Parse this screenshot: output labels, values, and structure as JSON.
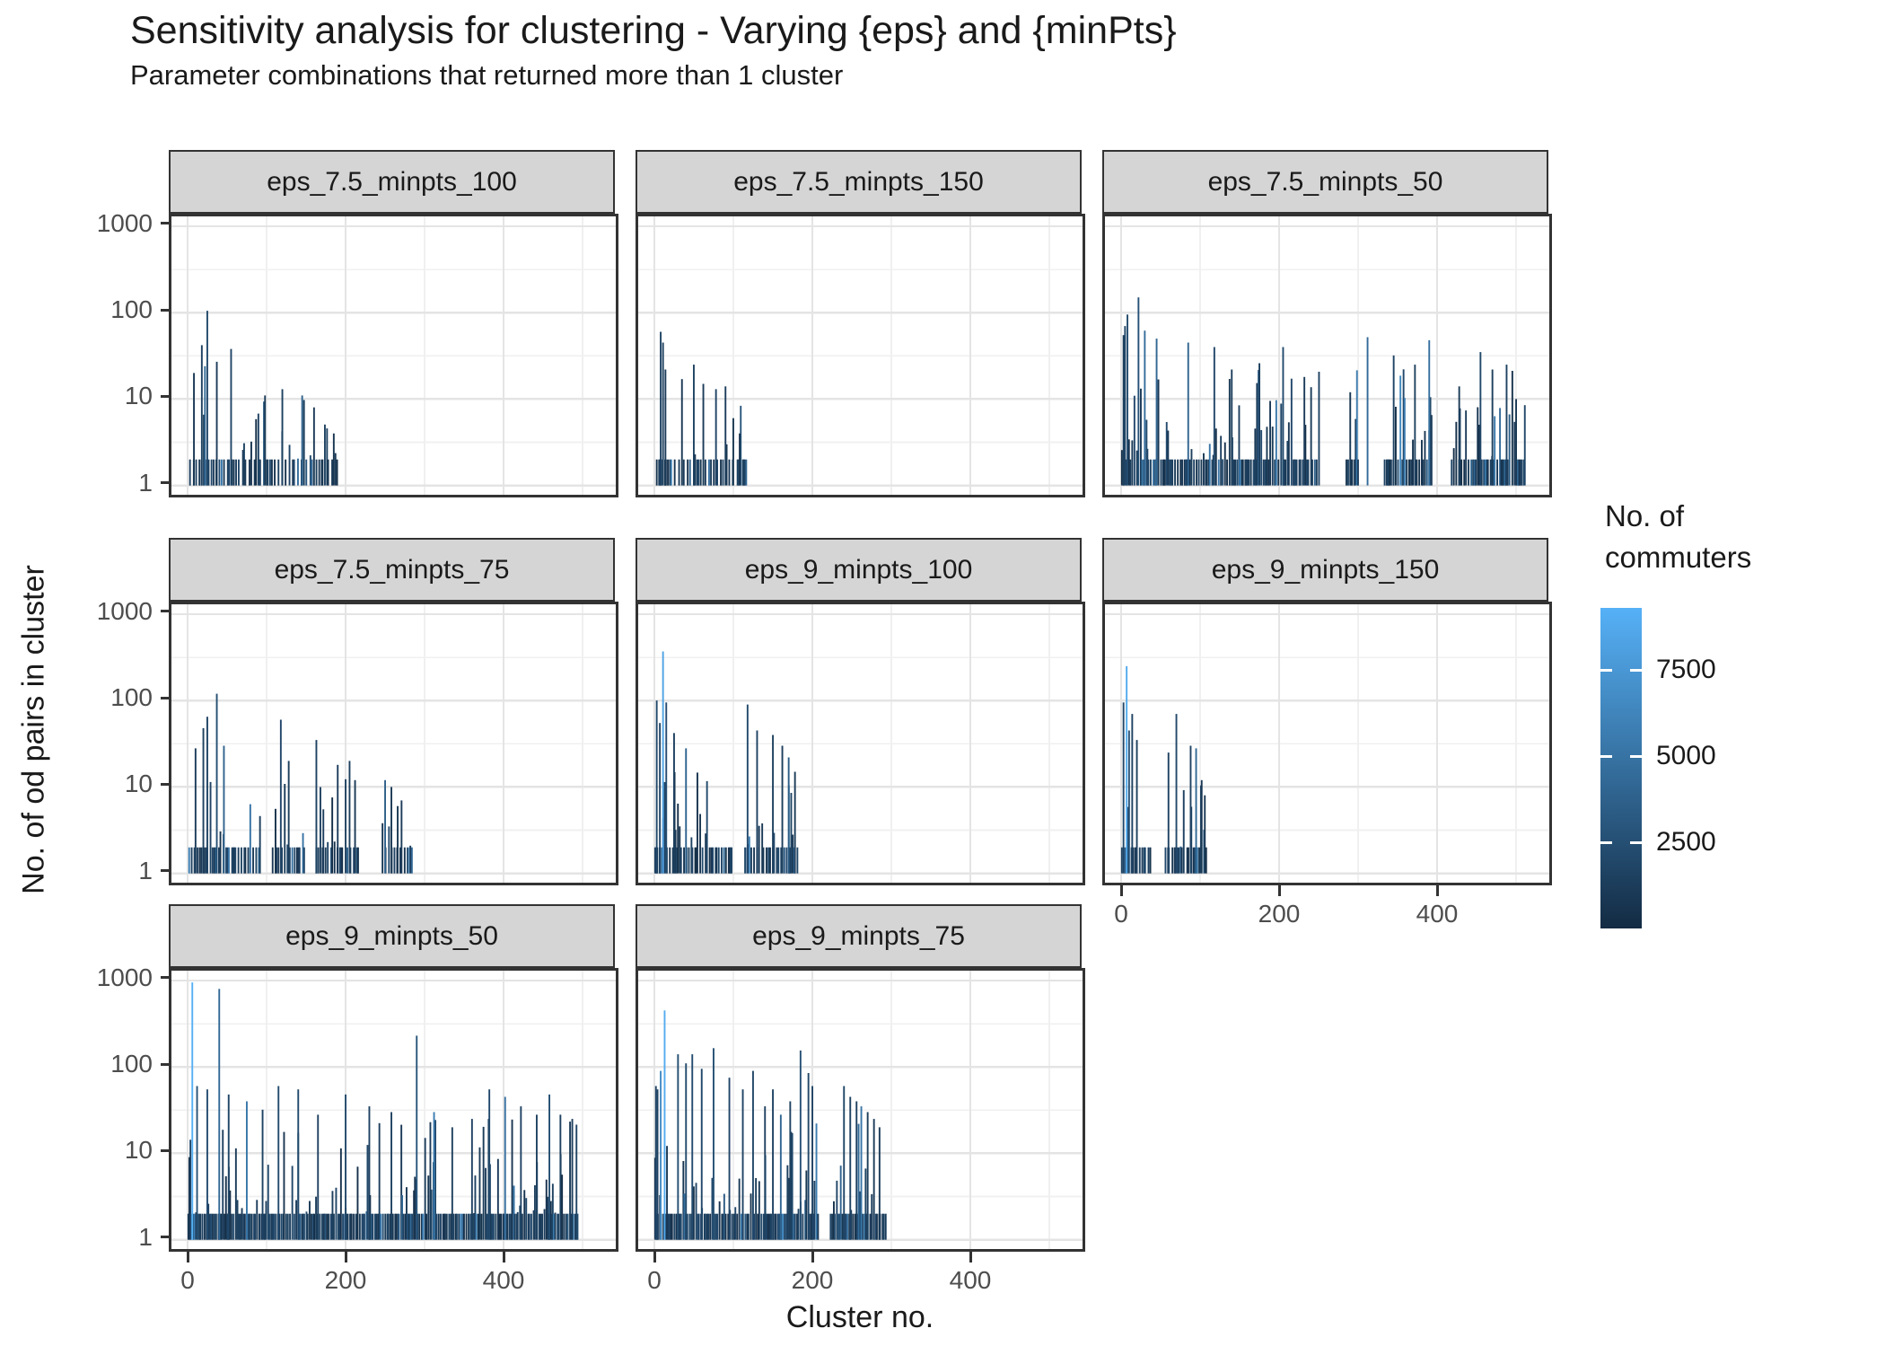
{
  "title": "Sensitivity analysis for clustering - Varying {eps} and {minPts}",
  "subtitle": "Parameter combinations that returned more than 1 cluster",
  "axes": {
    "x_title": "Cluster no.",
    "y_title": "No. of od pairs in cluster",
    "x_ticks": [
      "0",
      "200",
      "400"
    ],
    "y_ticks": [
      "1000",
      "100",
      "10",
      "1"
    ]
  },
  "legend": {
    "title_lines": [
      "No. of",
      "commuters"
    ],
    "tick_labels": [
      "7500",
      "5000",
      "2500"
    ],
    "gradient_high": "#56B1F7",
    "gradient_low": "#132B43"
  },
  "style": {
    "grid_major": "#e4e4e4",
    "grid_minor": "#f0f0f0",
    "panel_border": "#333333",
    "strip_bg": "#d5d5d5"
  },
  "chart_data": {
    "type": "bar",
    "y_scale": "log10",
    "x_tick_values": [
      0,
      200,
      400
    ],
    "y_tick_values": [
      1,
      10,
      100,
      1000
    ],
    "x_minor_values": [
      100,
      300,
      500
    ],
    "y_minor_values": [
      3.162,
      31.62,
      316.2
    ],
    "y_view": [
      0.78,
      1300
    ],
    "x_view_max": 547,
    "commuters_color_domain": [
      0,
      9300
    ],
    "legend_tick_values": [
      7500,
      5000,
      2500
    ],
    "facets": [
      {
        "label": "eps_7.5_minpts_100",
        "x_range": [
          0,
          190
        ],
        "y_peak": 105,
        "n_bars_approx": 60,
        "notable_bars": [
          [
            25,
            105,
            2100
          ],
          [
            18,
            42,
            1500
          ],
          [
            55,
            38,
            1800
          ],
          [
            37,
            27,
            1200
          ],
          [
            8,
            20,
            900
          ],
          [
            22,
            24,
            4200
          ],
          [
            120,
            13,
            1500
          ],
          [
            98,
            11,
            1100
          ],
          [
            145,
            11,
            3800
          ],
          [
            160,
            8,
            900
          ],
          [
            185,
            4,
            700
          ]
        ],
        "gen": {
          "seed": 11,
          "x_start": 3,
          "x_max": 190,
          "step": 4.5,
          "log_max": 1.15,
          "gaps": []
        }
      },
      {
        "label": "eps_7.5_minpts_150",
        "x_range": [
          0,
          120
        ],
        "y_peak": 60,
        "n_bars_approx": 30,
        "notable_bars": [
          [
            8,
            60,
            1700
          ],
          [
            11,
            45,
            1400
          ],
          [
            14,
            22,
            1100
          ],
          [
            50,
            25,
            1500
          ],
          [
            35,
            17,
            1000
          ],
          [
            62,
            15,
            1100
          ],
          [
            78,
            13,
            1700
          ],
          [
            90,
            14,
            1300
          ],
          [
            100,
            6,
            800
          ],
          [
            108,
            4,
            700
          ]
        ],
        "gen": {
          "seed": 22,
          "x_start": 3,
          "x_max": 118,
          "step": 5.5,
          "log_max": 0.95,
          "gaps": []
        }
      },
      {
        "label": "eps_7.5_minpts_50",
        "x_range": [
          0,
          512
        ],
        "y_peak": 150,
        "n_bars_approx": 170,
        "notable_bars": [
          [
            22,
            150,
            2700
          ],
          [
            8,
            95,
            2200
          ],
          [
            5,
            70,
            1800
          ],
          [
            3,
            55,
            1500
          ],
          [
            30,
            62,
            4600
          ],
          [
            45,
            50,
            4100
          ],
          [
            85,
            45,
            3900
          ],
          [
            118,
            40,
            1900
          ],
          [
            140,
            22,
            1300
          ],
          [
            175,
            26,
            1400
          ],
          [
            205,
            40,
            2200
          ],
          [
            232,
            18,
            1200
          ],
          [
            290,
            12,
            1000
          ],
          [
            312,
            52,
            4400
          ],
          [
            345,
            32,
            1700
          ],
          [
            372,
            25,
            1500
          ],
          [
            390,
            48,
            4700
          ],
          [
            428,
            14,
            1100
          ],
          [
            455,
            35,
            2000
          ],
          [
            470,
            22,
            1400
          ],
          [
            488,
            25,
            1600
          ],
          [
            500,
            10,
            900
          ]
        ],
        "gen": {
          "seed": 33,
          "x_start": 1,
          "x_max": 512,
          "step": 2.6,
          "log_max": 1.35,
          "gaps": [
            [
              252,
              284
            ],
            [
              300,
              332
            ],
            [
              394,
              418
            ]
          ]
        }
      },
      {
        "label": "eps_7.5_minpts_75",
        "x_range": [
          0,
          284
        ],
        "y_peak": 120,
        "n_bars_approx": 75,
        "notable_bars": [
          [
            37,
            120,
            2500
          ],
          [
            25,
            65,
            1700
          ],
          [
            20,
            48,
            1500
          ],
          [
            10,
            28,
            1100
          ],
          [
            46,
            30,
            3900
          ],
          [
            118,
            60,
            1900
          ],
          [
            128,
            20,
            1300
          ],
          [
            163,
            35,
            1600
          ],
          [
            190,
            18,
            1200
          ],
          [
            205,
            20,
            1400
          ],
          [
            212,
            12,
            1000
          ],
          [
            250,
            12,
            3600
          ],
          [
            258,
            10,
            900
          ],
          [
            266,
            6,
            800
          ]
        ],
        "gen": {
          "seed": 44,
          "x_start": 2,
          "x_max": 284,
          "step": 3.4,
          "log_max": 1.2,
          "gaps": [
            [
              92,
              107
            ],
            [
              150,
              160
            ],
            [
              216,
              246
            ]
          ]
        }
      },
      {
        "label": "eps_9_minpts_100",
        "x_range": [
          0,
          183
        ],
        "y_peak": 370,
        "n_bars_approx": 65,
        "notable_bars": [
          [
            11,
            370,
            8300
          ],
          [
            3,
            100,
            2000
          ],
          [
            15,
            95,
            2300
          ],
          [
            7,
            55,
            1600
          ],
          [
            25,
            42,
            1400
          ],
          [
            40,
            28,
            3800
          ],
          [
            118,
            90,
            2100
          ],
          [
            130,
            45,
            1600
          ],
          [
            150,
            40,
            1500
          ],
          [
            162,
            30,
            1300
          ],
          [
            170,
            22,
            3400
          ],
          [
            178,
            15,
            1100
          ]
        ],
        "gen": {
          "seed": 55,
          "x_start": 1,
          "x_max": 183,
          "step": 3.0,
          "log_max": 1.2,
          "gaps": [
            [
              100,
              112
            ]
          ]
        }
      },
      {
        "label": "eps_9_minpts_150",
        "x_range": [
          0,
          110
        ],
        "y_peak": 250,
        "n_bars_approx": 30,
        "notable_bars": [
          [
            7,
            250,
            8800
          ],
          [
            3,
            95,
            1900
          ],
          [
            14,
            70,
            1700
          ],
          [
            10,
            45,
            2600
          ],
          [
            20,
            35,
            1400
          ],
          [
            70,
            70,
            2000
          ],
          [
            60,
            25,
            1500
          ],
          [
            88,
            30,
            1600
          ],
          [
            95,
            28,
            4200
          ],
          [
            102,
            12,
            1000
          ],
          [
            106,
            8,
            850
          ]
        ],
        "gen": {
          "seed": 66,
          "x_start": 1,
          "x_max": 110,
          "step": 3.8,
          "log_max": 1.05,
          "gaps": [
            [
              38,
              56
            ]
          ]
        }
      },
      {
        "label": "eps_9_minpts_50",
        "x_range": [
          0,
          494
        ],
        "y_peak": 950,
        "n_bars_approx": 210,
        "notable_bars": [
          [
            6,
            950,
            9200
          ],
          [
            40,
            800,
            4300
          ],
          [
            12,
            60,
            2700
          ],
          [
            25,
            55,
            2300
          ],
          [
            52,
            48,
            1800
          ],
          [
            75,
            40,
            5200
          ],
          [
            95,
            32,
            1700
          ],
          [
            115,
            60,
            2200
          ],
          [
            140,
            55,
            2100
          ],
          [
            165,
            28,
            1500
          ],
          [
            200,
            48,
            2000
          ],
          [
            230,
            35,
            1600
          ],
          [
            258,
            30,
            1500
          ],
          [
            290,
            230,
            2900
          ],
          [
            312,
            30,
            5600
          ],
          [
            335,
            20,
            1500
          ],
          [
            360,
            25,
            1600
          ],
          [
            382,
            55,
            2100
          ],
          [
            402,
            45,
            4800
          ],
          [
            422,
            35,
            1700
          ],
          [
            442,
            28,
            1500
          ],
          [
            458,
            48,
            2400
          ],
          [
            472,
            28,
            1500
          ],
          [
            487,
            25,
            1400
          ]
        ],
        "gen": {
          "seed": 77,
          "x_start": 1,
          "x_max": 494,
          "step": 2.0,
          "log_max": 1.4,
          "gaps": []
        }
      },
      {
        "label": "eps_9_minpts_75",
        "x_range": [
          0,
          293
        ],
        "y_peak": 450,
        "n_bars_approx": 120,
        "notable_bars": [
          [
            13,
            450,
            8900
          ],
          [
            8,
            90,
            6600
          ],
          [
            2,
            60,
            1800
          ],
          [
            4,
            55,
            1700
          ],
          [
            30,
            140,
            2400
          ],
          [
            48,
            140,
            2300
          ],
          [
            40,
            110,
            2100
          ],
          [
            60,
            95,
            2000
          ],
          [
            75,
            165,
            2500
          ],
          [
            95,
            75,
            1900
          ],
          [
            112,
            55,
            1700
          ],
          [
            125,
            90,
            2000
          ],
          [
            140,
            35,
            1500
          ],
          [
            150,
            55,
            1700
          ],
          [
            160,
            28,
            4100
          ],
          [
            172,
            40,
            1600
          ],
          [
            185,
            155,
            2600
          ],
          [
            195,
            85,
            1900
          ],
          [
            200,
            60,
            1700
          ],
          [
            240,
            60,
            1800
          ],
          [
            248,
            45,
            1600
          ],
          [
            256,
            40,
            1500
          ],
          [
            262,
            35,
            5200
          ],
          [
            270,
            30,
            1300
          ],
          [
            278,
            25,
            1200
          ],
          [
            285,
            20,
            1100
          ]
        ],
        "gen": {
          "seed": 88,
          "x_start": 1,
          "x_max": 293,
          "step": 2.2,
          "log_max": 1.35,
          "gaps": [
            [
              210,
              222
            ]
          ]
        }
      }
    ]
  }
}
